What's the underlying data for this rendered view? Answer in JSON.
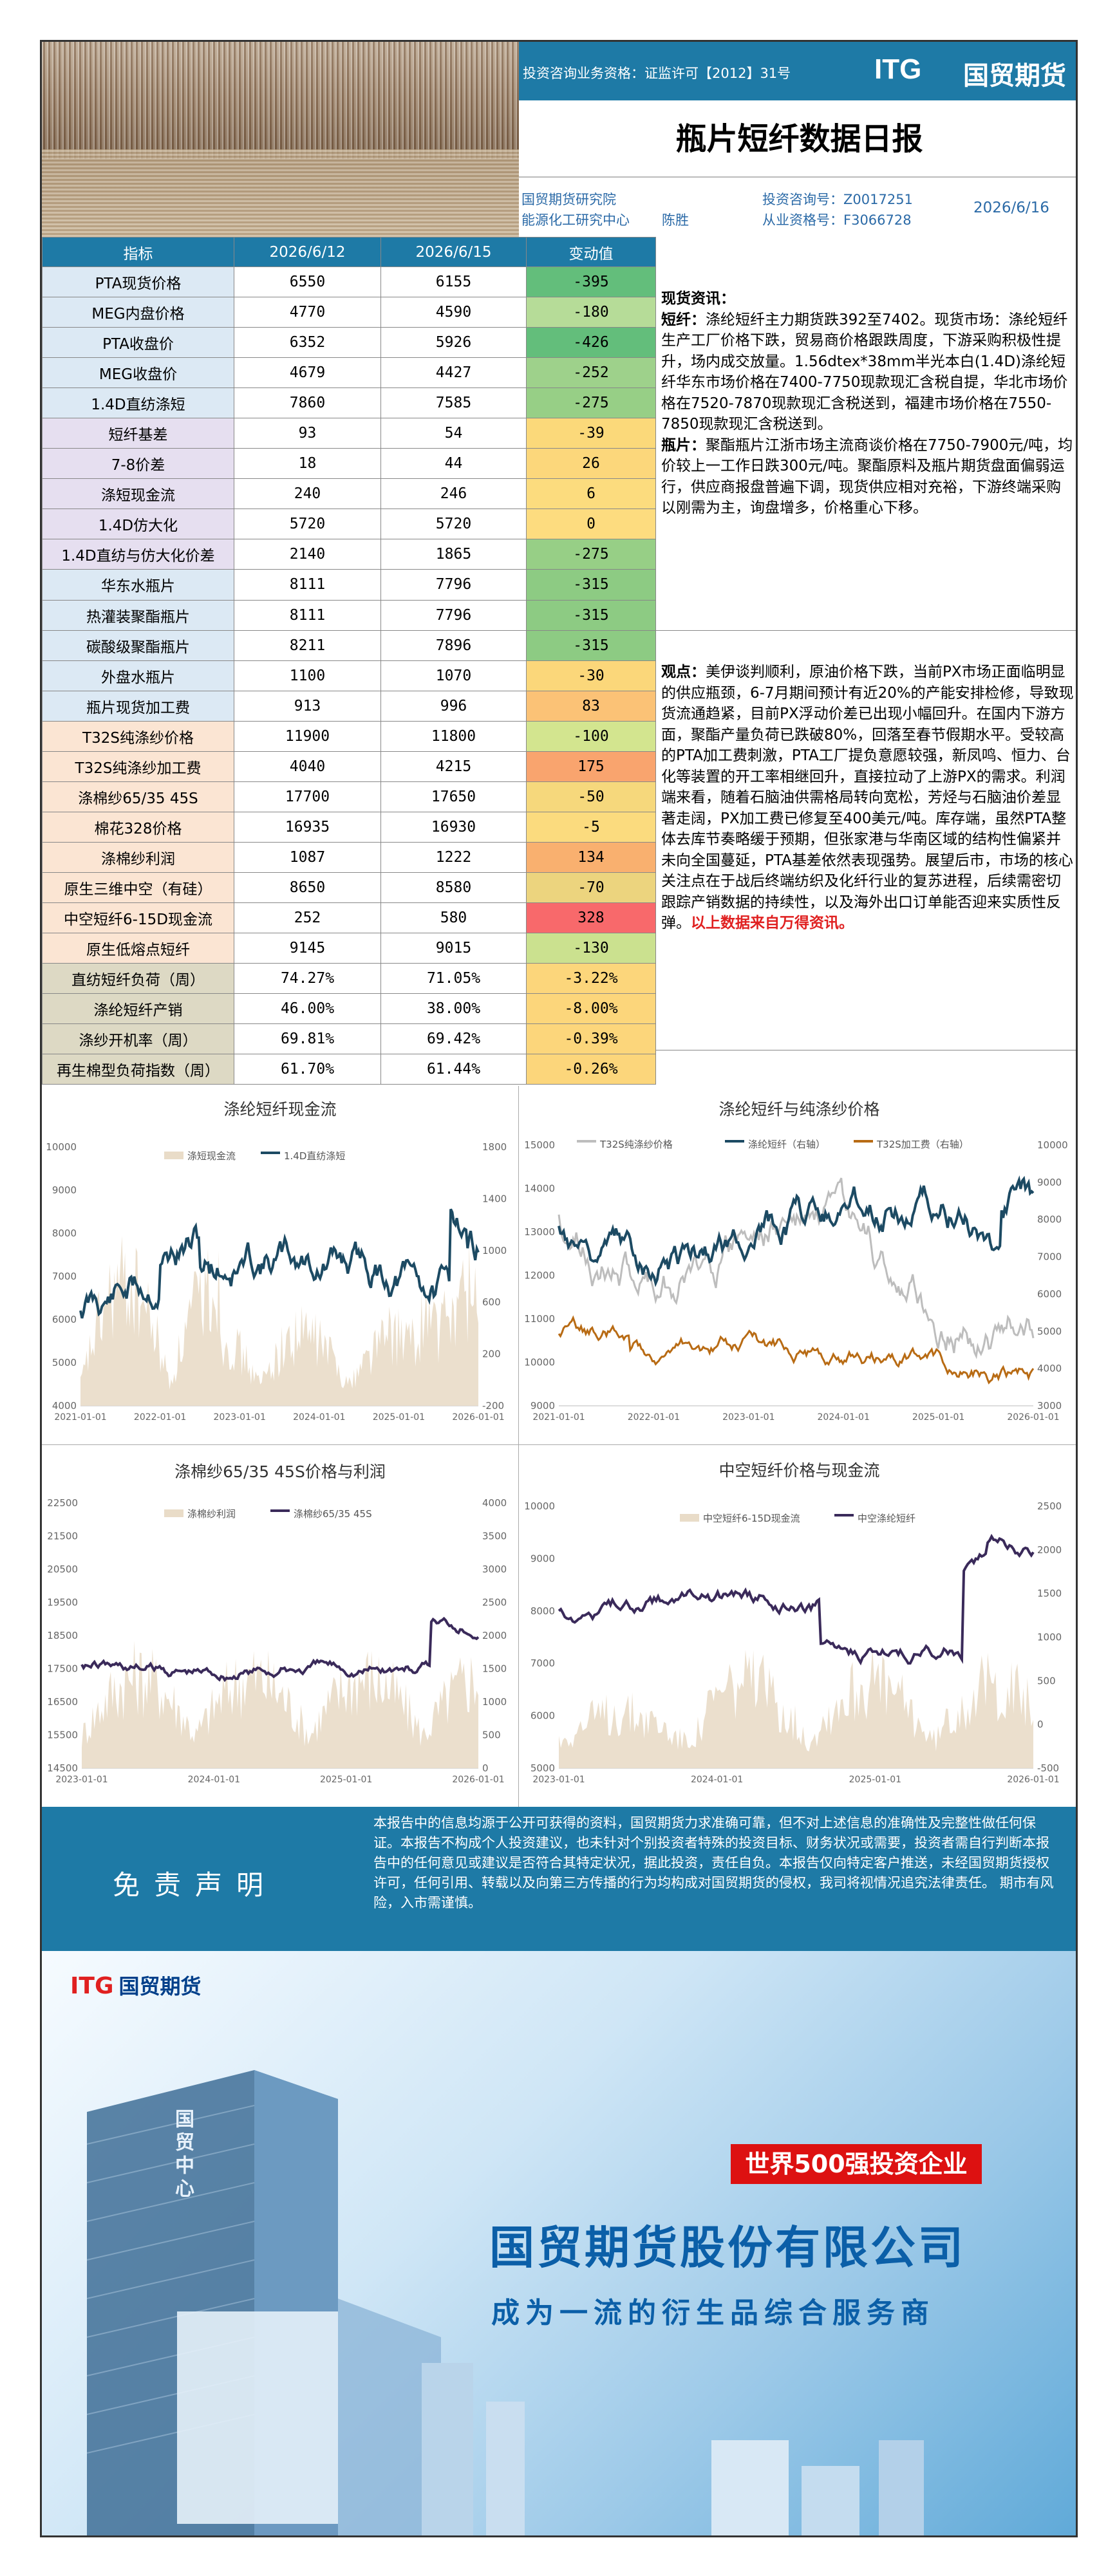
{
  "header": {
    "license": "投资咨询业务资格：证监许可【2012】31号",
    "logo_en": "ITG",
    "logo_cn": "国贸期货",
    "title": "瓶片短纤数据日报",
    "institute": "国贸期货研究院",
    "dept": "能源化工研究中心",
    "analyst": "陈胜",
    "consult_no": "投资咨询号：Z0017251",
    "qual_no": "从业资格号：F3066728",
    "date": "2026/6/16"
  },
  "table": {
    "headers": [
      "指标",
      "2026/6/12",
      "2026/6/15",
      "变动值"
    ],
    "rows": [
      {
        "name": "PTA现货价格",
        "a": "6550",
        "b": "6155",
        "chg": "-395",
        "bg": "#dce9f4",
        "cbg": "#63be7b"
      },
      {
        "name": "MEG内盘价格",
        "a": "4770",
        "b": "4590",
        "chg": "-180",
        "bg": "#dce9f4",
        "cbg": "#b6dc98"
      },
      {
        "name": "PTA收盘价",
        "a": "6352",
        "b": "5926",
        "chg": "-426",
        "bg": "#dce9f4",
        "cbg": "#63be7b"
      },
      {
        "name": "MEG收盘价",
        "a": "4679",
        "b": "4427",
        "chg": "-252",
        "bg": "#dce9f4",
        "cbg": "#9ed18b"
      },
      {
        "name": "1.4D直纺涤短",
        "a": "7860",
        "b": "7585",
        "chg": "-275",
        "bg": "#dce9f4",
        "cbg": "#97cf86"
      },
      {
        "name": "短纤基差",
        "a": "93",
        "b": "54",
        "chg": "-39",
        "bg": "#e6dff0",
        "cbg": "#fbd97a"
      },
      {
        "name": "7-8价差",
        "a": "18",
        "b": "44",
        "chg": "26",
        "bg": "#e6dff0",
        "cbg": "#fcd77b"
      },
      {
        "name": "涤短现金流",
        "a": "240",
        "b": "246",
        "chg": "6",
        "bg": "#e6dff0",
        "cbg": "#fcdc7e"
      },
      {
        "name": "1.4D仿大化",
        "a": "5720",
        "b": "5720",
        "chg": "0",
        "bg": "#e6dff0",
        "cbg": "#fddc7f"
      },
      {
        "name": "1.4D直纺与仿大化价差",
        "a": "2140",
        "b": "1865",
        "chg": "-275",
        "bg": "#e6dff0",
        "cbg": "#97cf86"
      },
      {
        "name": "华东水瓶片",
        "a": "8111",
        "b": "7796",
        "chg": "-315",
        "bg": "#dce9f4",
        "cbg": "#8dcb83"
      },
      {
        "name": "热灌装聚酯瓶片",
        "a": "8111",
        "b": "7796",
        "chg": "-315",
        "bg": "#dce9f4",
        "cbg": "#8dcb83"
      },
      {
        "name": "碳酸级聚酯瓶片",
        "a": "8211",
        "b": "7896",
        "chg": "-315",
        "bg": "#dce9f4",
        "cbg": "#8dcb83"
      },
      {
        "name": "外盘水瓶片",
        "a": "1100",
        "b": "1070",
        "chg": "-30",
        "bg": "#dce9f4",
        "cbg": "#fbd77a"
      },
      {
        "name": "瓶片现货加工费",
        "a": "913",
        "b": "996",
        "chg": "83",
        "bg": "#dce9f4",
        "cbg": "#fbc276"
      },
      {
        "name": "T32S纯涤纱价格",
        "a": "11900",
        "b": "11800",
        "chg": "-100",
        "bg": "#fbe5d3",
        "cbg": "#d3e58f"
      },
      {
        "name": "T32S纯涤纱加工费",
        "a": "4040",
        "b": "4215",
        "chg": "175",
        "bg": "#fbe5d3",
        "cbg": "#f9a46e"
      },
      {
        "name": "涤棉纱65/35 45S",
        "a": "17700",
        "b": "17650",
        "chg": "-50",
        "bg": "#fbe5d3",
        "cbg": "#f6d87c"
      },
      {
        "name": "棉花328价格",
        "a": "16935",
        "b": "16930",
        "chg": "-5",
        "bg": "#fbe5d3",
        "cbg": "#fbdb7e"
      },
      {
        "name": "涤棉纱利润",
        "a": "1087",
        "b": "1222",
        "chg": "134",
        "bg": "#fbe5d3",
        "cbg": "#f9b06f"
      },
      {
        "name": "原生三维中空（有硅）",
        "a": "8650",
        "b": "8580",
        "chg": "-70",
        "bg": "#fbe5d3",
        "cbg": "#ecd47e"
      },
      {
        "name": "中空短纤6-15D现金流",
        "a": "252",
        "b": "580",
        "chg": "328",
        "bg": "#fbe5d3",
        "cbg": "#f8696b"
      },
      {
        "name": "原生低熔点短纤",
        "a": "9145",
        "b": "9015",
        "chg": "-130",
        "bg": "#fbe5d3",
        "cbg": "#cbe18f"
      },
      {
        "name": "直纺短纤负荷（周）",
        "a": "74.27%",
        "b": "71.05%",
        "chg": "-3.22%",
        "bg": "#ddd9c4",
        "cbg": "#fcd67b"
      },
      {
        "name": "涤纶短纤产销",
        "a": "46.00%",
        "b": "38.00%",
        "chg": "-8.00%",
        "bg": "#ddd9c4",
        "cbg": "#fcd67b"
      },
      {
        "name": "涤纱开机率（周）",
        "a": "69.81%",
        "b": "69.42%",
        "chg": "-0.39%",
        "bg": "#ddd9c4",
        "cbg": "#fcd67b"
      },
      {
        "name": "再生棉型负荷指数（周）",
        "a": "61.70%",
        "b": "61.44%",
        "chg": "-0.26%",
        "bg": "#ddd9c4",
        "cbg": "#fcd67b"
      }
    ]
  },
  "spot": {
    "head": "现货资讯：",
    "l1": "短纤：",
    "t1": "涤纶短纤主力期货跌392至7402。现货市场：涤纶短纤生产工厂价格下跌，贸易商价格跟跌周度，下游采购积极性提升，场内成交放量。1.56dtex*38mm半光本白(1.4D)涤纶短纤华东市场价格在7400-7750现款现汇含税自提，华北市场价格在7520-7870现款现汇含税送到，福建市场价格在7550-7850现款现汇含税送到。",
    "l2": "瓶片：",
    "t2": "聚酯瓶片江浙市场主流商谈价格在7750-7900元/吨，均价较上一工作日跌300元/吨。聚酯原料及瓶片期货盘面偏弱运行，供应商报盘普遍下调，现货供应相对充裕，下游终端采购以刚需为主，询盘增多，价格重心下移。"
  },
  "view": {
    "label": "观点：",
    "text": "美伊谈判顺利，原油价格下跌，当前PX市场正面临明显的供应瓶颈，6-7月期间预计有近20%的产能安排检修，导致现货流通趋紧，目前PX浮动价差已出现小幅回升。在国内下游方面，聚酯产量负荷已跌破80%，回落至春节假期水平。受较高的PTA加工费刺激，PTA工厂提负意愿较强，新凤鸣、恒力、台化等装置的开工率相继回升，直接拉动了上游PX的需求。利润端来看，随着石脑油供需格局转向宽松，芳烃与石脑油价差显著走阔，PX加工费已修复至400美元/吨。库存端，虽然PTA整体去库节奏略缓于预期，但张家港与华南区域的结构性偏紧并未向全国蔓延，PTA基差依然表现强势。展望后市，市场的核心关注点在于战后终端纺织及化纤行业的复苏进程，后续需密切跟踪产销数据的持续性，以及海外出口订单能否迎来实质性反弹。",
    "red": "以上数据来自万得资讯。"
  },
  "charts": {
    "c1": {
      "title": "涤纶短纤现金流",
      "leg1": "涤短现金流",
      "leg2": "1.4D直纺涤短",
      "yl": [
        "10000",
        "9000",
        "8000",
        "7000",
        "6000",
        "5000",
        "4000"
      ],
      "yr": [
        "1800",
        "1400",
        "1000",
        "600",
        "200",
        "-200"
      ],
      "x": [
        "2021-01-01",
        "2022-01-01",
        "2023-01-01",
        "2024-01-01",
        "2025-01-01",
        "2026-01-01"
      ]
    },
    "c2": {
      "title": "涤纶短纤与纯涤纱价格",
      "leg1": "T32S纯涤纱价格",
      "leg2": "涤纶短纤（右轴）",
      "leg3": "T32S加工费（右轴）",
      "yl": [
        "15000",
        "14000",
        "13000",
        "12000",
        "11000",
        "10000",
        "9000"
      ],
      "yr": [
        "10000",
        "9000",
        "8000",
        "7000",
        "6000",
        "5000",
        "4000",
        "3000"
      ],
      "x": [
        "2021-01-01",
        "2022-01-01",
        "2023-01-01",
        "2024-01-01",
        "2025-01-01",
        "2026-01-01"
      ]
    },
    "c3": {
      "title": "涤棉纱65/35 45S价格与利润",
      "leg1": "涤棉纱利润",
      "leg2": "涤棉纱65/35 45S",
      "yl": [
        "22500",
        "21500",
        "20500",
        "19500",
        "18500",
        "17500",
        "16500",
        "15500",
        "14500"
      ],
      "yr": [
        "4000",
        "3500",
        "3000",
        "2500",
        "2000",
        "1500",
        "1000",
        "500",
        "0"
      ],
      "x": [
        "2023-01-01",
        "2024-01-01",
        "2025-01-01",
        "2026-01-01"
      ]
    },
    "c4": {
      "title": "中空短纤价格与现金流",
      "leg1": "中空短纤6-15D现金流",
      "leg2": "中空涤纶短纤",
      "yl": [
        "10000",
        "9000",
        "8000",
        "7000",
        "6000",
        "5000"
      ],
      "yr": [
        "2500",
        "2000",
        "1500",
        "1000",
        "500",
        "0",
        "-500"
      ],
      "x": [
        "2023-01-01",
        "2024-01-01",
        "2025-01-01",
        "2026-01-01"
      ]
    }
  },
  "disclaimer": {
    "title": "免责声明",
    "text": "本报告中的信息均源于公开可获得的资料，国贸期货力求准确可靠，但不对上述信息的准确性及完整性做任何保证。本报告不构成个人投资建议，也未针对个别投资者特殊的投资目标、财务状况或需要，投资者需自行判断本报告中的任何意见或建议是否符合其特定状况，据此投资，责任自负。本报告仅向特定客户推送，未经国贸期货授权许可，任何引用、转载以及向第三方传播的行为均构成对国贸期货的侵权，我司将视情况追究法律责任。 期市有风险，入市需谨慎。"
  },
  "banner": {
    "logo_en": "ITG",
    "logo_cn": "国贸期货",
    "badge": "世界500强投资企业",
    "company": "国贸期货股份有限公司",
    "slogan": "成为一流的衍生品综合服务商",
    "tower_text": "国贸中心"
  },
  "colors": {
    "brand_blue": "#1e7aa6",
    "accent_red": "#e02020",
    "navy_line": "#1c4a63",
    "gold_line": "#b86b14",
    "grey_line": "#bdbdbd",
    "beige_area": "#e9dcc8"
  }
}
